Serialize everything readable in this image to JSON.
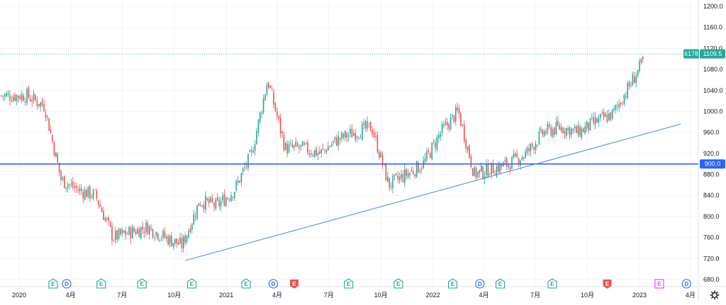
{
  "chart_data": {
    "type": "candlestick",
    "title": "",
    "xlabel": "",
    "ylabel": "",
    "ylim": [
      670,
      1210
    ],
    "yticks": [
      "1200.0",
      "1160.0",
      "1120.0",
      "1080.0",
      "1040.0",
      "1000.0",
      "960.0",
      "920.0",
      "880.0",
      "840.0",
      "800.0",
      "760.0",
      "720.0",
      "680.0"
    ],
    "x_axis": {
      "labels": [
        "2020",
        "4月",
        "7月",
        "10月",
        "2021",
        "4月",
        "7月",
        "10月",
        "2022",
        "4月",
        "7月",
        "10月",
        "2023",
        "4月"
      ],
      "label_dates": [
        "2020-01",
        "2020-04",
        "2020-07",
        "2020-10",
        "2021-01",
        "2021-04",
        "2021-07",
        "2021-10",
        "2022-01",
        "2022-04",
        "2022-07",
        "2022-10",
        "2023-01",
        "2023-04"
      ]
    },
    "series": [
      {
        "x": [
          "2020-01",
          "2020-02",
          "2020-03",
          "2020-04",
          "2020-05",
          "2020-06",
          "2020-07",
          "2020-08",
          "2020-09",
          "2020-10",
          "2020-11",
          "2020-12",
          "2021-01",
          "2021-02",
          "2021-03",
          "2021-04",
          "2021-05",
          "2021-06",
          "2021-07",
          "2021-08",
          "2021-09",
          "2021-10",
          "2021-11",
          "2021-12",
          "2022-01",
          "2022-02",
          "2022-03",
          "2022-04",
          "2022-05",
          "2022-06",
          "2022-07",
          "2022-08",
          "2022-09",
          "2022-10",
          "2022-11",
          "2022-12",
          "2023-01"
        ],
        "close": [
          1030,
          1010,
          870,
          850,
          840,
          760,
          770,
          780,
          760,
          745,
          830,
          820,
          850,
          920,
          1060,
          930,
          930,
          920,
          945,
          960,
          970,
          860,
          880,
          900,
          960,
          1000,
          880,
          890,
          900,
          920,
          960,
          970,
          960,
          980,
          995,
          1050,
          1110
        ]
      }
    ],
    "horizontal_line": {
      "value": 900.0,
      "label": "900.0",
      "color": "#2962ff"
    },
    "trendline": {
      "from": {
        "date": "2020-10-20",
        "value": 716
      },
      "to": {
        "date": "2023-03-15",
        "value": 976
      },
      "color": "#5b8def"
    },
    "last_price": {
      "value": 1109.5,
      "label": "1109.5",
      "volume_label": "6178",
      "color": "#26a69a"
    },
    "events": [
      {
        "date": "2020-03-01",
        "letter": "E",
        "kind": "earnings"
      },
      {
        "date": "2020-03-25",
        "letter": "D",
        "kind": "dividend"
      },
      {
        "date": "2020-05-25",
        "letter": "E",
        "kind": "earnings"
      },
      {
        "date": "2020-08-05",
        "letter": "E",
        "kind": "earnings"
      },
      {
        "date": "2020-11-01",
        "letter": "E",
        "kind": "earnings"
      },
      {
        "date": "2021-02-05",
        "letter": "E",
        "kind": "earnings"
      },
      {
        "date": "2021-03-25",
        "letter": "D",
        "kind": "dividend"
      },
      {
        "date": "2021-05-01",
        "letter": "E",
        "kind": "earnings-miss"
      },
      {
        "date": "2021-08-05",
        "letter": "E",
        "kind": "earnings"
      },
      {
        "date": "2021-11-01",
        "letter": "E",
        "kind": "earnings"
      },
      {
        "date": "2022-02-05",
        "letter": "E",
        "kind": "earnings"
      },
      {
        "date": "2022-03-25",
        "letter": "D",
        "kind": "dividend"
      },
      {
        "date": "2022-04-30",
        "letter": "E",
        "kind": "earnings"
      },
      {
        "date": "2022-07-31",
        "letter": "E",
        "kind": "earnings"
      },
      {
        "date": "2022-11-05",
        "letter": "E",
        "kind": "earnings-miss"
      },
      {
        "date": "2023-02-05",
        "letter": "E",
        "kind": "upcoming"
      },
      {
        "date": "2023-03-25",
        "letter": "D",
        "kind": "dividend"
      }
    ],
    "grid": true
  },
  "ui": {
    "settings_icon": "gear-icon"
  },
  "colors": {
    "up": "#26a69a",
    "down": "#ef5350",
    "grid": "#f0f3fa",
    "axis_text": "#131722",
    "earnings": "#26a69a",
    "earnings_miss": "#ef5350",
    "upcoming": "#e040fb",
    "dividend": "#2962ff"
  }
}
